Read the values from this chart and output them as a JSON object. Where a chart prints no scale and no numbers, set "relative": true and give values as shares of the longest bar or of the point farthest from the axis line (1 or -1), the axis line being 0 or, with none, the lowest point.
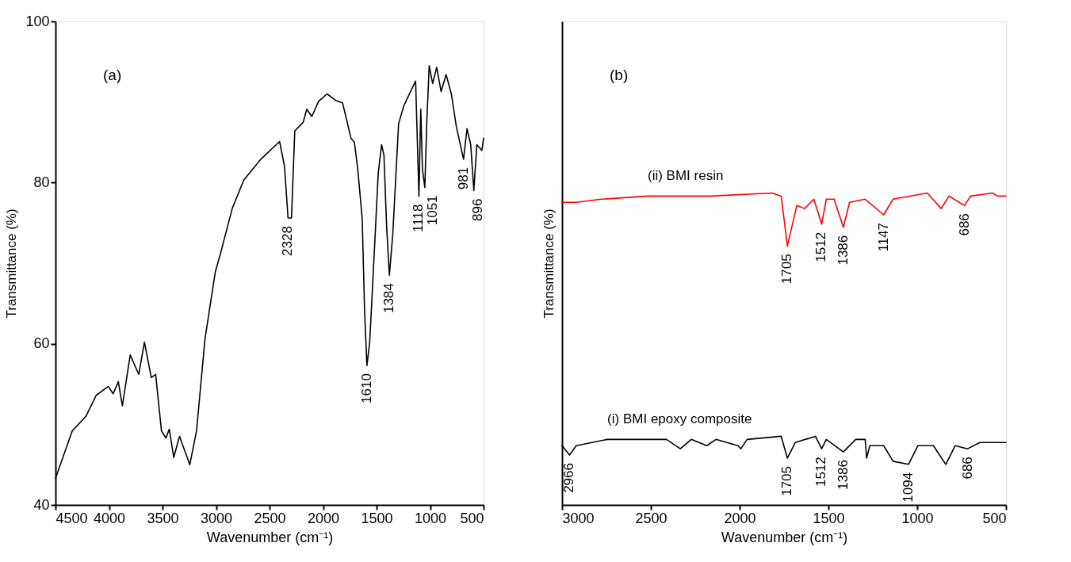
{
  "chart_data": [
    {
      "type": "line",
      "xlabel": "Wavenumber (cm⁻¹)",
      "ylabel": "Transmittance (%)",
      "xlim": [
        4500,
        500
      ],
      "xticks": [
        4500,
        4000,
        3500,
        3000,
        2500,
        2000,
        1500,
        1000,
        500
      ],
      "ylim": [
        40,
        100
      ],
      "yticks": [
        40,
        60,
        80,
        100
      ],
      "grid": false,
      "series": [
        {
          "color": "#000000",
          "x": [
            4500,
            4343,
            4215,
            4120,
            4008,
            3961,
            3913,
            3875,
            3802,
            3722,
            3669,
            3605,
            3564,
            3510,
            3468,
            3437,
            3395,
            3341,
            3245,
            3182,
            3103,
            3007,
            2960,
            2848,
            2741,
            2581,
            2406,
            2360,
            2327,
            2295,
            2264,
            2185,
            2152,
            2105,
            2041,
            1962,
            1882,
            1818,
            1787,
            1739,
            1707,
            1675,
            1634,
            1612,
            1590,
            1564,
            1532,
            1484,
            1453,
            1431,
            1406,
            1380,
            1348,
            1294,
            1246,
            1182,
            1135,
            1104,
            1087,
            1071,
            1049,
            1030,
            1008,
            976,
            938,
            897,
            850,
            801,
            754,
            687,
            655,
            620,
            591,
            563,
            516,
            500
          ],
          "values": [
            43.3,
            49.2,
            51.0,
            53.6,
            54.7,
            53.8,
            55.3,
            52.3,
            58.6,
            56.2,
            60.2,
            55.8,
            56.2,
            49.2,
            48.3,
            49.4,
            45.9,
            48.5,
            45.0,
            49.2,
            60.6,
            68.9,
            71.1,
            76.8,
            80.3,
            82.9,
            85.1,
            82.0,
            75.6,
            75.6,
            86.4,
            87.5,
            89.1,
            88.2,
            90.1,
            91.0,
            90.2,
            89.9,
            88.2,
            85.5,
            85.0,
            81.6,
            75.5,
            64.1,
            57.3,
            60.2,
            68.5,
            81.2,
            84.7,
            83.4,
            74.6,
            68.5,
            73.7,
            87.3,
            89.5,
            91.3,
            92.6,
            78.3,
            89.1,
            81.6,
            79.4,
            87.7,
            94.5,
            92.3,
            94.3,
            91.3,
            93.4,
            91.0,
            86.9,
            82.9,
            86.7,
            84.7,
            79.0,
            84.7,
            84.0,
            85.5
          ]
        }
      ],
      "annotations": [
        "(a)",
        {
          "text": "2328",
          "x": 2327,
          "y": 75.6
        },
        {
          "text": "1610",
          "x": 1590,
          "y": 57.3
        },
        {
          "text": "1384",
          "x": 1380,
          "y": 68.5
        },
        {
          "text": "1118",
          "x": 1104,
          "y": 78.3
        },
        {
          "text": "1051",
          "x": 1049,
          "y": 79.4
        },
        {
          "text": "981",
          "x": 687,
          "y": 82.9
        },
        {
          "text": "896",
          "x": 591,
          "y": 79.0
        }
      ]
    },
    {
      "type": "line",
      "xlabel": "Wavenumber (cm⁻¹)",
      "ylabel": "Transmittance (%)",
      "xlim": [
        3000,
        500
      ],
      "xticks": [
        3000,
        2500,
        2000,
        1500,
        1000,
        500
      ],
      "relative": true,
      "grid": false,
      "series": [
        {
          "name": "(ii) BMI resin",
          "color": "#ff0000",
          "x": [
            3000,
            2920,
            2780,
            2518,
            2168,
            1818,
            1766,
            1731,
            1678,
            1634,
            1582,
            1538,
            1512,
            1468,
            1416,
            1381,
            1293,
            1189,
            1136,
            943,
            865,
            821,
            734,
            699,
            577,
            547,
            500
          ],
          "values": [
            0.97,
            0.97,
            0.98,
            0.99,
            0.99,
            1.0,
            0.99,
            0.83,
            0.96,
            0.95,
            0.98,
            0.9,
            0.98,
            0.98,
            0.89,
            0.97,
            0.98,
            0.93,
            0.98,
            1.0,
            0.95,
            0.99,
            0.96,
            0.99,
            1.0,
            0.99,
            0.99
          ]
        },
        {
          "name": "(i) BMI epoxy composite",
          "color": "#000000",
          "x": [
            3000,
            2958,
            2920,
            2745,
            2412,
            2334,
            2272,
            2185,
            2133,
            2010,
            1993,
            1958,
            1766,
            1731,
            1687,
            1573,
            1538,
            1512,
            1416,
            1346,
            1293,
            1285,
            1267,
            1189,
            1136,
            1049,
            996,
            909,
            839,
            786,
            716,
            647,
            500
          ],
          "values": [
            0.19,
            0.16,
            0.19,
            0.21,
            0.21,
            0.18,
            0.21,
            0.19,
            0.21,
            0.19,
            0.18,
            0.21,
            0.22,
            0.15,
            0.2,
            0.22,
            0.18,
            0.21,
            0.17,
            0.21,
            0.21,
            0.15,
            0.19,
            0.19,
            0.14,
            0.13,
            0.19,
            0.19,
            0.13,
            0.19,
            0.18,
            0.2,
            0.2
          ]
        }
      ],
      "annotations": [
        "(b)",
        {
          "text": "1705",
          "x": 1731,
          "y": 0.83
        },
        {
          "text": "1512",
          "x": 1538,
          "y": 0.9
        },
        {
          "text": "1386",
          "x": 1416,
          "y": 0.89
        },
        {
          "text": "1147",
          "x": 1189,
          "y": 0.93
        },
        {
          "text": "686",
          "x": 734,
          "y": 0.96
        },
        {
          "text": "2966",
          "x": 2958,
          "y": 0.16
        },
        {
          "text": "1705",
          "x": 1731,
          "y": 0.15
        },
        {
          "text": "1512",
          "x": 1538,
          "y": 0.18
        },
        {
          "text": "1386",
          "x": 1416,
          "y": 0.17
        },
        {
          "text": "1094",
          "x": 1049,
          "y": 0.13
        },
        {
          "text": "686",
          "x": 716,
          "y": 0.18
        }
      ]
    }
  ]
}
